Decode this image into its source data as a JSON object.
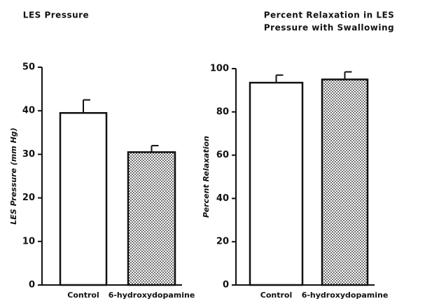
{
  "chart_data": [
    {
      "type": "bar",
      "title": [
        "LES Pressure"
      ],
      "ylabel": "LES Pressure (mm Hg)",
      "categories": [
        "Control",
        "6-hydroxydopamine"
      ],
      "values": [
        39.5,
        30.5
      ],
      "errors": [
        3,
        1.5
      ],
      "fills": [
        "plain",
        "dots"
      ],
      "ylim": [
        0,
        50
      ],
      "yticks": [
        0,
        10,
        20,
        30,
        40,
        50
      ]
    },
    {
      "type": "bar",
      "title": [
        "Percent Relaxation in LES",
        "Pressure with Swallowing"
      ],
      "ylabel": "Percent Relaxation",
      "categories": [
        "Control",
        "6-hydroxydopamine"
      ],
      "values": [
        93.5,
        95
      ],
      "errors": [
        3.5,
        3.5
      ],
      "fills": [
        "plain",
        "dots"
      ],
      "ylim": [
        0,
        100
      ],
      "yticks": [
        0,
        20,
        40,
        60,
        80,
        100
      ]
    }
  ]
}
